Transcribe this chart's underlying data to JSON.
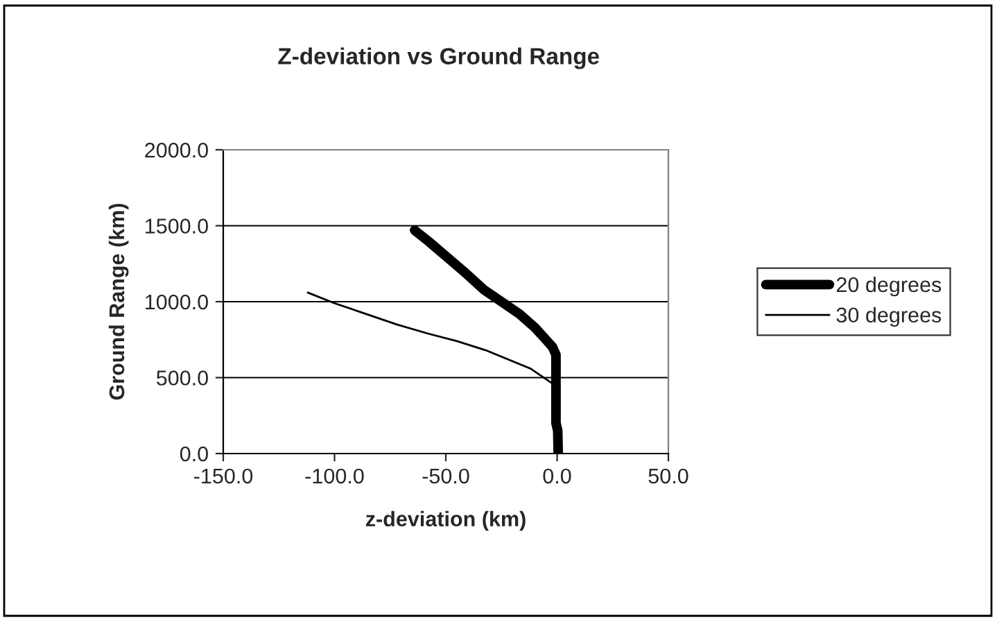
{
  "chart_data": {
    "type": "line",
    "title": "Z-deviation vs Ground Range",
    "xlabel": "z-deviation (km)",
    "ylabel": "Ground Range (km)",
    "xlim": [
      -150,
      50
    ],
    "xticks": [
      {
        "value": -150,
        "label": "-150.0"
      },
      {
        "value": -100,
        "label": "-100.0"
      },
      {
        "value": -50,
        "label": "-50.0"
      },
      {
        "value": 0,
        "label": "0.0"
      },
      {
        "value": 50,
        "label": "50.0"
      }
    ],
    "ylim": [
      0,
      2000
    ],
    "yticks": [
      {
        "value": 0,
        "label": "0.0"
      },
      {
        "value": 500,
        "label": "500.0"
      },
      {
        "value": 1000,
        "label": "1000.0"
      },
      {
        "value": 1500,
        "label": "1500.0"
      },
      {
        "value": 2000,
        "label": "2000.0"
      }
    ],
    "grid": "y",
    "legend": "right",
    "marker": "none",
    "line_style": "solid",
    "series": [
      {
        "name": "20 degrees",
        "color": "#000000",
        "x": [
          0.5,
          0.3,
          -0.5,
          -0.5,
          -2,
          -5,
          -10,
          -17,
          -25,
          -33,
          -42,
          -50,
          -58,
          -64
        ],
        "values": [
          0,
          150,
          200,
          650,
          700,
          750,
          830,
          920,
          1000,
          1080,
          1200,
          1300,
          1400,
          1470
        ]
      },
      {
        "name": "30 degrees",
        "color": "#000000",
        "x": [
          -1,
          -5,
          -12,
          -22,
          -32,
          -45,
          -58,
          -72,
          -88,
          -100,
          -112
        ],
        "values": [
          450,
          490,
          560,
          620,
          680,
          740,
          790,
          850,
          930,
          990,
          1060
        ]
      }
    ]
  }
}
